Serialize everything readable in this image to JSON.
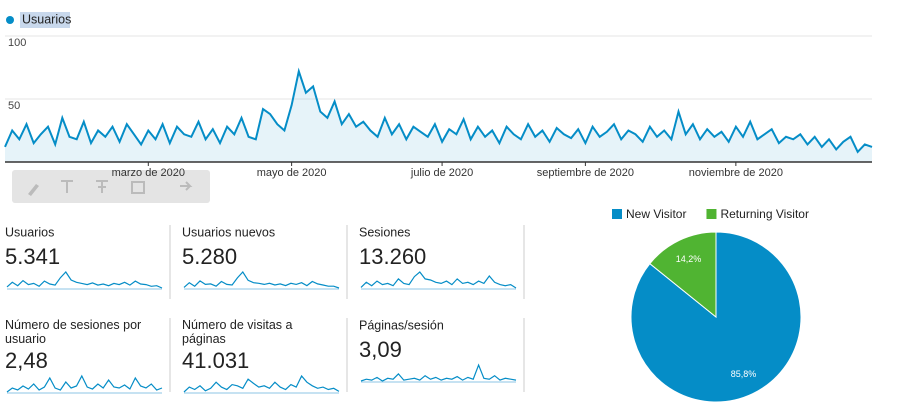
{
  "chart_data": [
    {
      "type": "line",
      "series": [
        {
          "name": "Usuarios",
          "color": "#058dc7",
          "values": [
            12,
            25,
            18,
            30,
            15,
            22,
            28,
            14,
            35,
            20,
            18,
            32,
            15,
            25,
            20,
            28,
            16,
            30,
            22,
            14,
            25,
            18,
            30,
            15,
            28,
            22,
            20,
            32,
            18,
            26,
            15,
            28,
            22,
            35,
            20,
            18,
            42,
            38,
            30,
            25,
            45,
            72,
            55,
            60,
            40,
            35,
            48,
            30,
            38,
            28,
            32,
            25,
            20,
            35,
            22,
            30,
            18,
            28,
            24,
            20,
            30,
            16,
            26,
            22,
            34,
            18,
            28,
            20,
            25,
            15,
            28,
            22,
            18,
            30,
            20,
            25,
            16,
            27,
            22,
            19,
            26,
            15,
            28,
            20,
            24,
            30,
            18,
            25,
            22,
            16,
            28,
            20,
            25,
            18,
            40,
            22,
            30,
            18,
            26,
            20,
            24,
            16,
            28,
            20,
            32,
            18,
            22,
            26,
            15,
            20,
            18,
            22,
            14,
            20,
            12,
            18,
            10,
            16,
            20,
            8,
            14,
            12
          ]
        }
      ],
      "xlim": [
        0,
        121
      ],
      "xticks": [
        {
          "value": 20,
          "label": "marzo de 2020"
        },
        {
          "value": 40,
          "label": "mayo de 2020"
        },
        {
          "value": 61,
          "label": "julio de 2020"
        },
        {
          "value": 81,
          "label": "septiembre de 2020"
        },
        {
          "value": 102,
          "label": "noviembre de 2020"
        }
      ],
      "ylim": [
        0,
        100
      ],
      "yticks": [
        50,
        100
      ],
      "grid": true
    },
    {
      "type": "pie",
      "categories": [
        "New Visitor",
        "Returning Visitor"
      ],
      "values": [
        85.8,
        14.2
      ],
      "value_labels": [
        "85,8%",
        "14,2%"
      ],
      "colors": [
        "#058dc7",
        "#50b432"
      ]
    }
  ],
  "metrics": [
    {
      "label": "Usuarios",
      "value": "5.341",
      "trend": [
        14,
        22,
        16,
        25,
        18,
        20,
        15,
        24,
        19,
        17,
        30,
        40,
        26,
        22,
        20,
        18,
        21,
        17,
        19,
        16,
        20,
        18,
        22,
        17,
        24,
        19,
        18,
        15,
        16,
        12
      ]
    },
    {
      "label": "Usuarios nuevos",
      "value": "5.280",
      "trend": [
        13,
        21,
        15,
        24,
        18,
        19,
        15,
        23,
        18,
        17,
        29,
        39,
        25,
        21,
        20,
        18,
        20,
        17,
        19,
        16,
        20,
        18,
        21,
        16,
        23,
        19,
        17,
        15,
        15,
        12
      ]
    },
    {
      "label": "Sesiones",
      "value": "13.260",
      "trend": [
        15,
        24,
        18,
        26,
        20,
        22,
        18,
        30,
        22,
        20,
        34,
        42,
        30,
        28,
        24,
        22,
        26,
        20,
        30,
        22,
        24,
        20,
        26,
        22,
        35,
        24,
        20,
        18,
        20,
        14
      ]
    },
    {
      "label": "Número de sesiones por usuario",
      "value": "2,48",
      "trend": [
        16,
        20,
        18,
        22,
        19,
        24,
        18,
        21,
        30,
        20,
        18,
        26,
        20,
        22,
        32,
        21,
        19,
        24,
        20,
        28,
        21,
        20,
        23,
        19,
        30,
        22,
        20,
        24,
        18,
        20
      ]
    },
    {
      "label": "Número de visitas a páginas",
      "value": "41.031",
      "trend": [
        14,
        22,
        18,
        24,
        16,
        20,
        30,
        22,
        18,
        26,
        24,
        20,
        35,
        28,
        22,
        24,
        20,
        30,
        22,
        18,
        26,
        22,
        40,
        30,
        24,
        20,
        22,
        18,
        20,
        15
      ]
    },
    {
      "label": "Páginas/sesión",
      "value": "3,09",
      "trend": [
        18,
        20,
        19,
        22,
        18,
        21,
        20,
        26,
        19,
        20,
        21,
        19,
        24,
        20,
        22,
        19,
        21,
        20,
        23,
        19,
        22,
        20,
        36,
        21,
        20,
        24,
        19,
        21,
        20,
        19
      ]
    }
  ]
}
